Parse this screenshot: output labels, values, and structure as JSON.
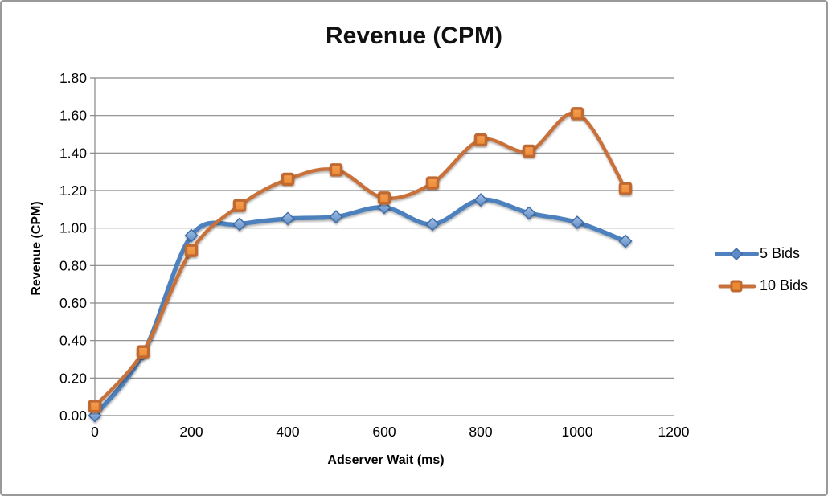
{
  "window": {
    "background": "#ffffff",
    "border_color": "#9a9a9a"
  },
  "chart_data": {
    "type": "line",
    "title": "Revenue (CPM)",
    "xlabel": "Adserver Wait (ms)",
    "ylabel": "Revenue (CPM)",
    "x": [
      0,
      100,
      200,
      300,
      400,
      500,
      600,
      700,
      800,
      900,
      1000,
      1100
    ],
    "xlim": [
      0,
      1200
    ],
    "ylim": [
      0,
      1.8
    ],
    "x_ticks": [
      0,
      200,
      400,
      600,
      800,
      1000,
      1200
    ],
    "y_tick_step": 0.2,
    "grid": "horizontal-only",
    "grid_color": "#878787",
    "smooth_lines": true,
    "legend_position": "right",
    "series": [
      {
        "name": "5 Bids",
        "marker": "diamond",
        "color": "#4e81bd",
        "marker_fill_top": "#a3c1e5",
        "marker_fill_bottom": "#5f8cc6",
        "marker_edge": "#3f6da8",
        "values": [
          0.0,
          0.33,
          0.96,
          1.02,
          1.05,
          1.06,
          1.11,
          1.02,
          1.15,
          1.08,
          1.03,
          0.93
        ]
      },
      {
        "name": "10 Bids",
        "marker": "square",
        "color": "#c8713a",
        "marker_fill_top": "#f6a055",
        "marker_fill_bottom": "#ec8a33",
        "marker_edge": "#c06a30",
        "values": [
          0.05,
          0.34,
          0.88,
          1.12,
          1.26,
          1.31,
          1.16,
          1.24,
          1.47,
          1.41,
          1.61,
          1.21
        ]
      }
    ]
  }
}
